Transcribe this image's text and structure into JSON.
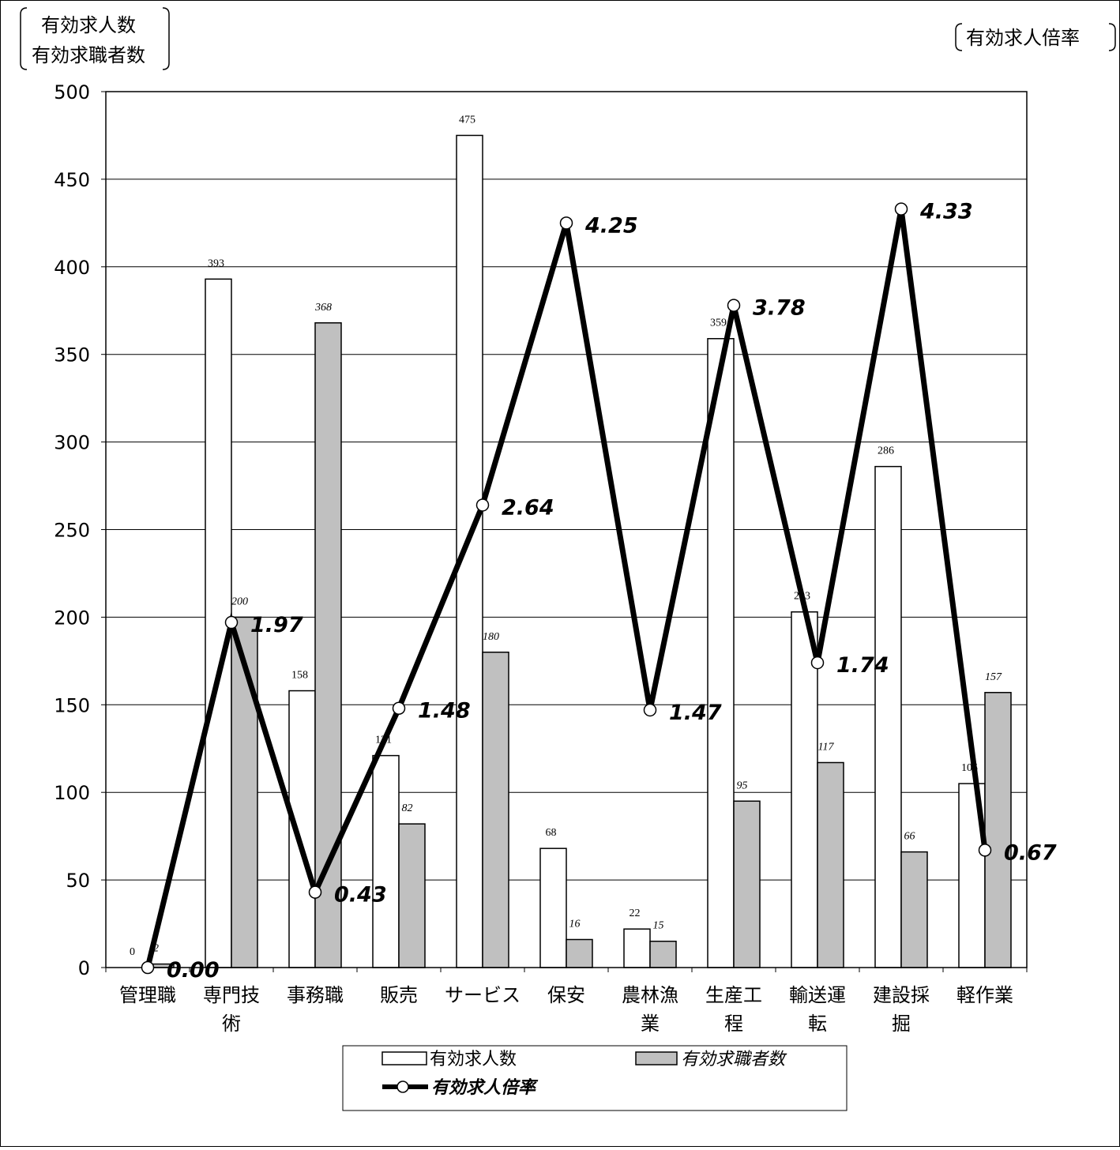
{
  "chart_data": {
    "type": "bar",
    "left_axis_caption": [
      "有効求人数",
      "有効求職者数"
    ],
    "right_axis_caption": "有効求人倍率",
    "categories": [
      [
        "管理職"
      ],
      [
        "専門技",
        "術"
      ],
      [
        "事務職"
      ],
      [
        "販売"
      ],
      [
        "サービス"
      ],
      [
        "保安"
      ],
      [
        "農林漁",
        "業"
      ],
      [
        "生産工",
        "程"
      ],
      [
        "輸送運",
        "転"
      ],
      [
        "建設採",
        "掘"
      ],
      [
        "軽作業"
      ]
    ],
    "y_ticks": [
      "0",
      "50",
      "100",
      "150",
      "200",
      "250",
      "300",
      "350",
      "400",
      "450",
      "500"
    ],
    "ylim": [
      0,
      500
    ],
    "grid": true,
    "legend_position": "bottom-center",
    "series": [
      {
        "name": "有効求人数",
        "kind": "bar",
        "color": "#ffffff",
        "values": [
          0,
          393,
          158,
          121,
          475,
          68,
          22,
          359,
          203,
          286,
          105
        ],
        "labels": [
          "0",
          "393",
          "158",
          "121",
          "475",
          "68",
          "22",
          "359",
          "203",
          "286",
          "105"
        ]
      },
      {
        "name": "有効求職者数",
        "kind": "bar",
        "color": "#c0c0c0",
        "values": [
          2,
          200,
          368,
          82,
          180,
          16,
          15,
          95,
          117,
          66,
          157
        ],
        "labels": [
          "2",
          "200",
          "368",
          "82",
          "180",
          "16",
          "15",
          "95",
          "117",
          "66",
          "157"
        ]
      },
      {
        "name": "有効求人倍率",
        "kind": "line",
        "color": "#000000",
        "values": [
          0.0,
          1.97,
          0.43,
          1.48,
          2.64,
          4.25,
          1.47,
          3.78,
          1.74,
          4.33,
          0.67
        ],
        "labels": [
          "0.00",
          "1.97",
          "0.43",
          "1.48",
          "2.64",
          "4.25",
          "1.47",
          "3.78",
          "1.74",
          "4.33",
          "0.67"
        ],
        "ylim": [
          0,
          5
        ]
      }
    ]
  }
}
